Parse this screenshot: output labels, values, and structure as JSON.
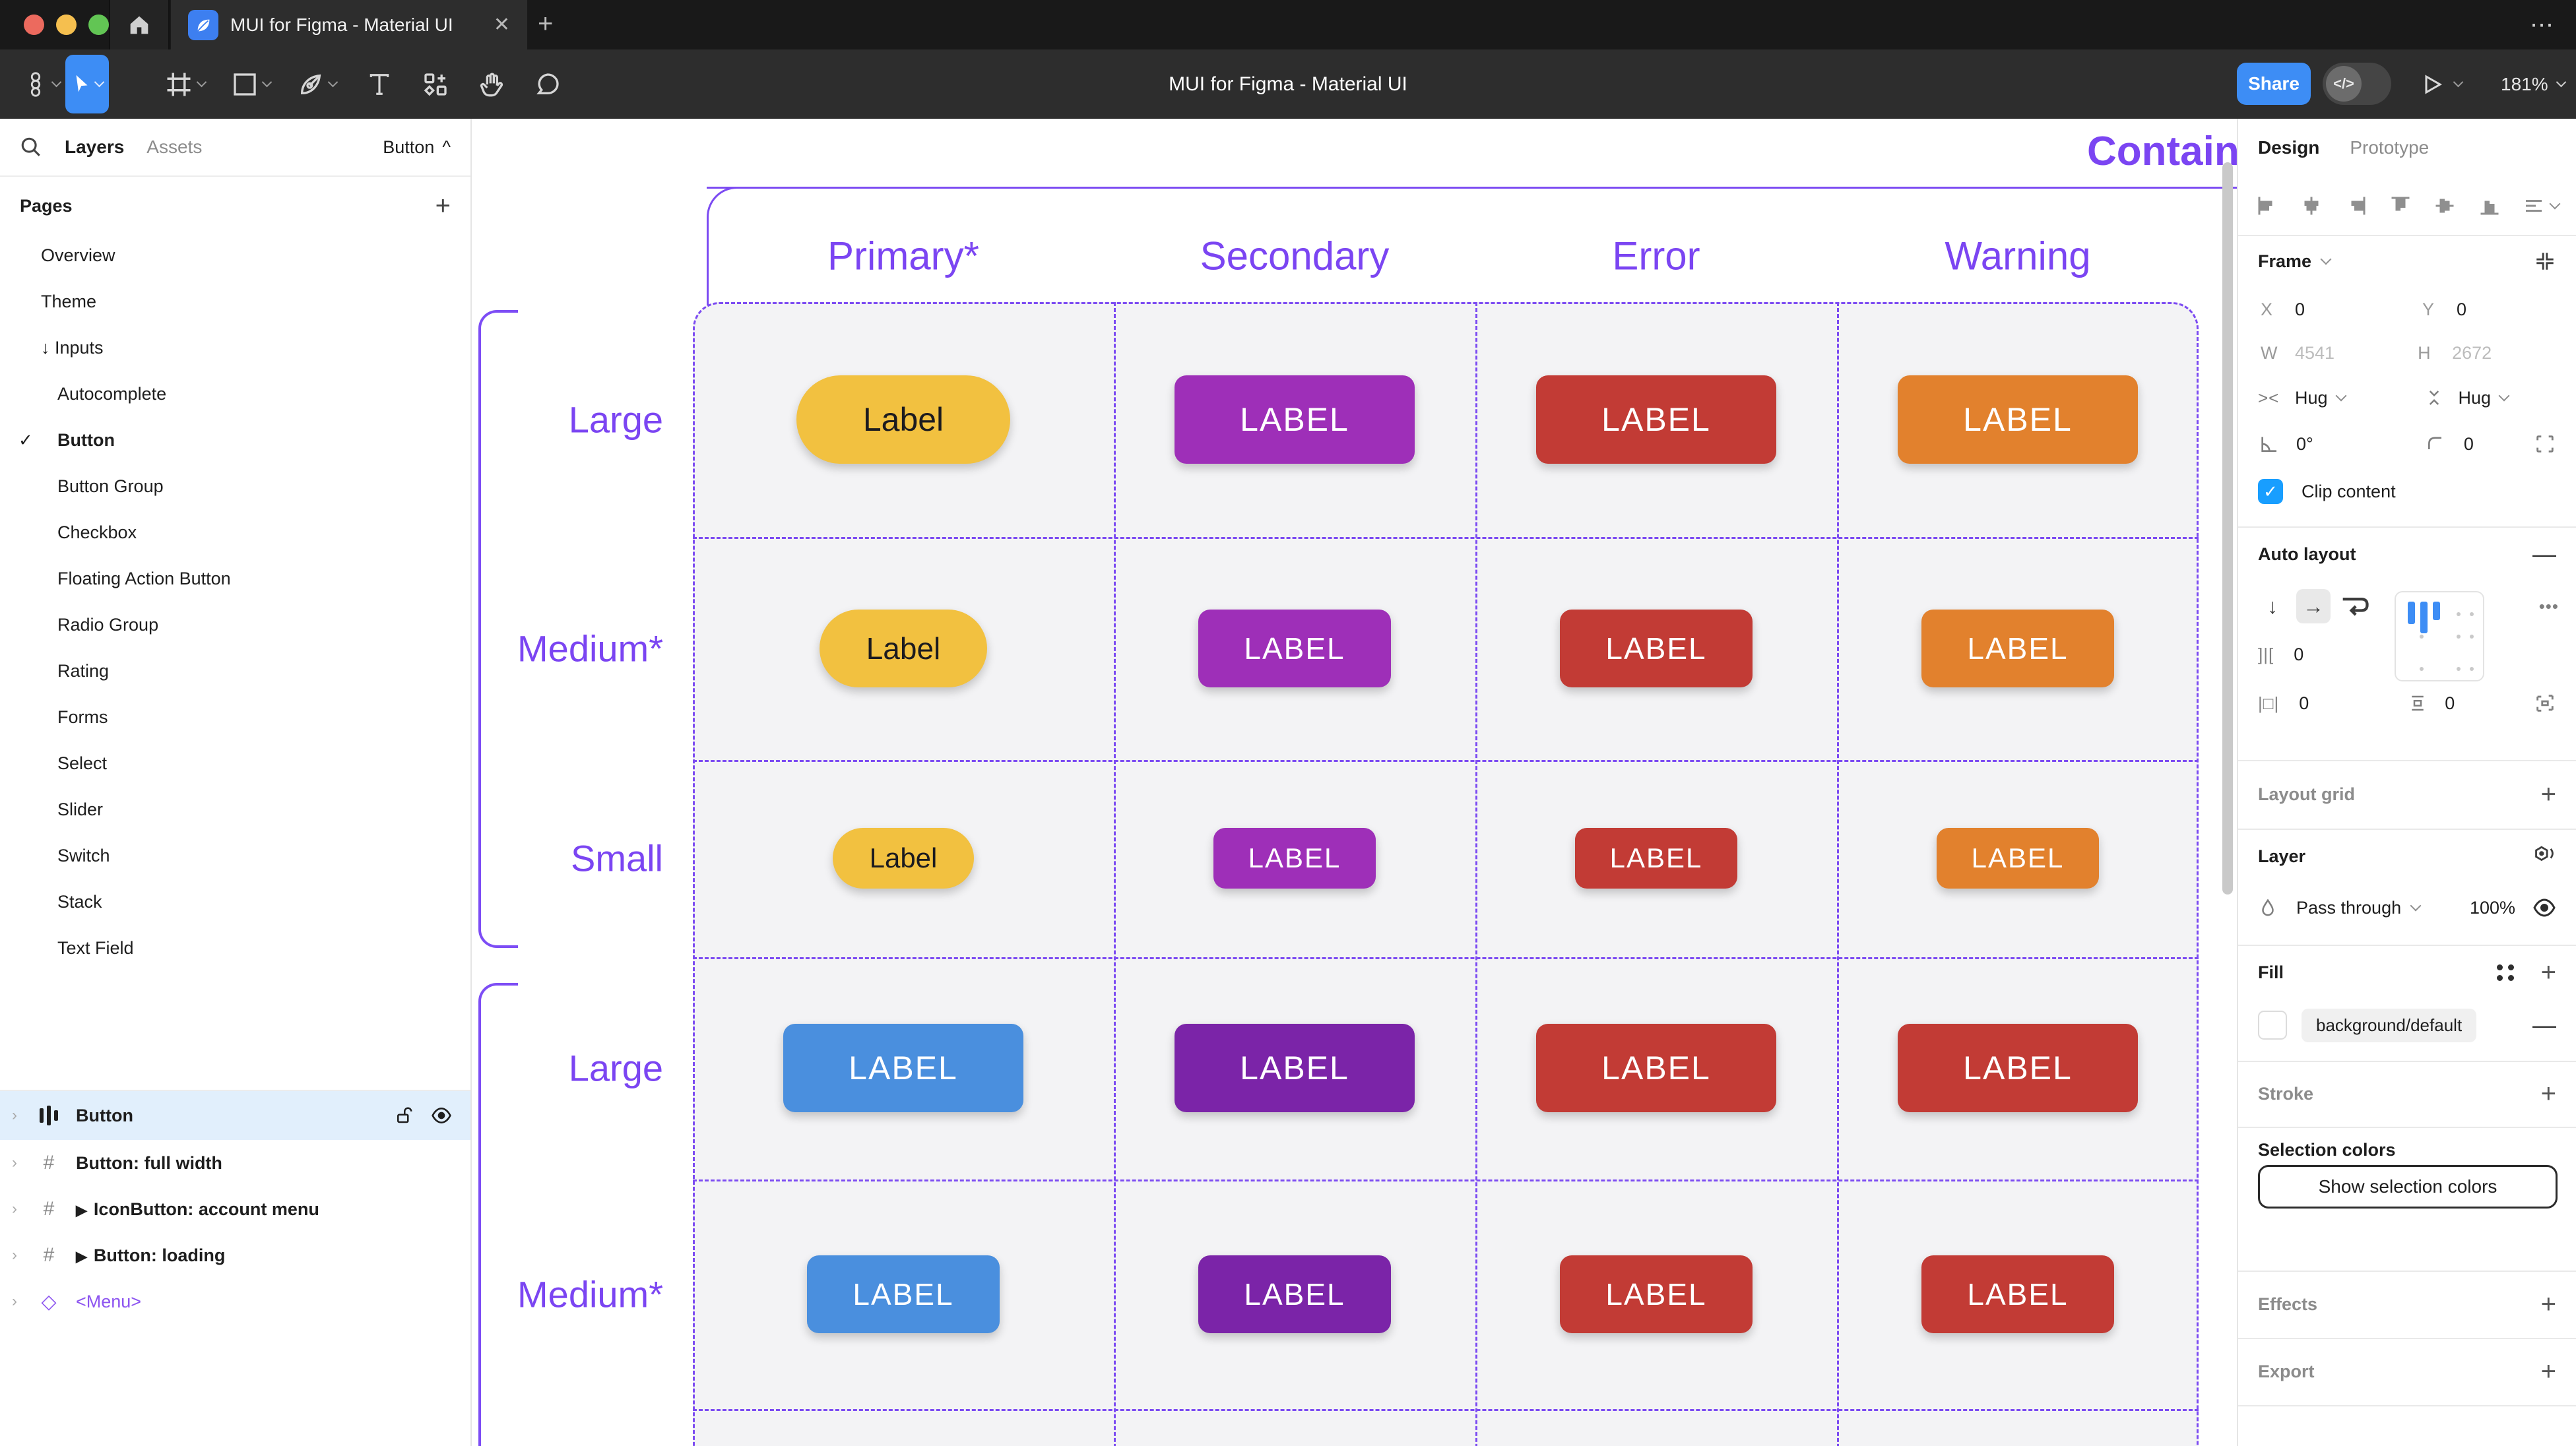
{
  "window": {
    "tab_title": "MUI for Figma - Material UI",
    "close_glyph": "✕",
    "new_tab_glyph": "+",
    "more_glyph": "•••",
    "traffic_colors": {
      "red": "#ec6a5e",
      "yellow": "#f5bf4f",
      "green": "#62c554"
    }
  },
  "toolbar": {
    "doc_title": "MUI for Figma - Material UI",
    "share_label": "Share",
    "devmode_glyph": "</>",
    "zoom_level": "181%"
  },
  "sidebar": {
    "tabs": {
      "layers": "Layers",
      "assets": "Assets"
    },
    "page_selector": "Button",
    "page_selector_caret": "^",
    "pages_header": "Pages",
    "pages_add_glyph": "+",
    "check_glyph": "✓",
    "inputs_arrow": "↓",
    "pages": [
      {
        "label": "Overview",
        "indent": 0
      },
      {
        "label": "Theme",
        "indent": 0
      },
      {
        "label": "Inputs",
        "indent": 0,
        "prefix": true
      },
      {
        "label": "Autocomplete",
        "indent": 1
      },
      {
        "label": "Button",
        "indent": 1,
        "checked": true,
        "bold": true
      },
      {
        "label": "Button Group",
        "indent": 1
      },
      {
        "label": "Checkbox",
        "indent": 1
      },
      {
        "label": "Floating Action Button",
        "indent": 1
      },
      {
        "label": "Radio Group",
        "indent": 1
      },
      {
        "label": "Rating",
        "indent": 1
      },
      {
        "label": "Forms",
        "indent": 1
      },
      {
        "label": "Select",
        "indent": 1
      },
      {
        "label": "Slider",
        "indent": 1
      },
      {
        "label": "Switch",
        "indent": 1
      },
      {
        "label": "Stack",
        "indent": 1
      },
      {
        "label": "Text Field",
        "indent": 1
      }
    ],
    "layers": [
      {
        "label": "Button",
        "icon": "autolayout",
        "selected": true
      },
      {
        "label": "Button: full width",
        "icon": "frame"
      },
      {
        "label": "IconButton: account menu",
        "icon": "frame",
        "play": true
      },
      {
        "label": "Button: loading",
        "icon": "frame",
        "play": true
      },
      {
        "label": "<Menu>",
        "icon": "component",
        "purple": true
      }
    ]
  },
  "canvas": {
    "section_title": "Contained",
    "columns": [
      "Primary*",
      "Secondary",
      "Error",
      "Warning"
    ],
    "row_labels": [
      "Large",
      "Medium*",
      "Small",
      "Large",
      "Medium*"
    ],
    "palette": {
      "yellow": "#f2c140",
      "yellow_text": "#1c1b1f",
      "purple": "#9e2fb8",
      "purple_dark": "#7b24a8",
      "red": "#c23b35",
      "orange": "#e2812d",
      "blue": "#4a8fde",
      "accent": "#7c4bf2",
      "white_text": "#ffffff"
    },
    "button_rows": [
      {
        "cells": [
          {
            "text": "Label",
            "color": "yellow",
            "dark": true,
            "pill": true
          },
          {
            "text": "LABEL",
            "color": "purple"
          },
          {
            "text": "LABEL",
            "color": "red"
          },
          {
            "text": "LABEL",
            "color": "orange"
          }
        ]
      },
      {
        "cells": [
          {
            "text": "Label",
            "color": "yellow",
            "dark": true,
            "pill": true
          },
          {
            "text": "LABEL",
            "color": "purple"
          },
          {
            "text": "LABEL",
            "color": "red"
          },
          {
            "text": "LABEL",
            "color": "orange"
          }
        ]
      },
      {
        "cells": [
          {
            "text": "Label",
            "color": "yellow",
            "dark": true,
            "pill": true
          },
          {
            "text": "LABEL",
            "color": "purple"
          },
          {
            "text": "LABEL",
            "color": "red"
          },
          {
            "text": "LABEL",
            "color": "orange"
          }
        ]
      },
      {
        "cells": [
          {
            "text": "LABEL",
            "color": "blue"
          },
          {
            "text": "LABEL",
            "color": "purple_dark"
          },
          {
            "text": "LABEL",
            "color": "red"
          },
          {
            "text": "LABEL",
            "color": "red"
          }
        ]
      },
      {
        "cells": [
          {
            "text": "LABEL",
            "color": "blue"
          },
          {
            "text": "LABEL",
            "color": "purple_dark"
          },
          {
            "text": "LABEL",
            "color": "red"
          },
          {
            "text": "LABEL",
            "color": "red"
          }
        ]
      }
    ]
  },
  "inspector": {
    "tabs": {
      "design": "Design",
      "prototype": "Prototype"
    },
    "frame": {
      "title": "Frame",
      "x_label": "X",
      "x": "0",
      "y_label": "Y",
      "y": "0",
      "w_label": "W",
      "w": "4541",
      "h_label": "H",
      "h": "2672",
      "hug_h": "Hug",
      "hug_v": "Hug",
      "angle": "0°",
      "radius": "0",
      "clip_label": "Clip content",
      "check_glyph": "✓"
    },
    "auto_layout": {
      "title": "Auto layout",
      "remove_glyph": "—",
      "down_glyph": "↓",
      "right_glyph": "→",
      "gap": "0",
      "pad_h": "0",
      "pad_v": "0",
      "more_glyph": "•••"
    },
    "layout_grid": {
      "title": "Layout grid",
      "add_glyph": "+"
    },
    "layer": {
      "title": "Layer",
      "blend": "Pass through",
      "opacity": "100%"
    },
    "fill": {
      "title": "Fill",
      "token": "background/default",
      "add_glyph": "+",
      "remove_glyph": "—"
    },
    "stroke": {
      "title": "Stroke",
      "add_glyph": "+"
    },
    "selection_colors": {
      "title": "Selection colors",
      "button": "Show selection colors"
    },
    "effects": {
      "title": "Effects",
      "add_glyph": "+"
    },
    "export": {
      "title": "Export",
      "add_glyph": "+"
    }
  }
}
